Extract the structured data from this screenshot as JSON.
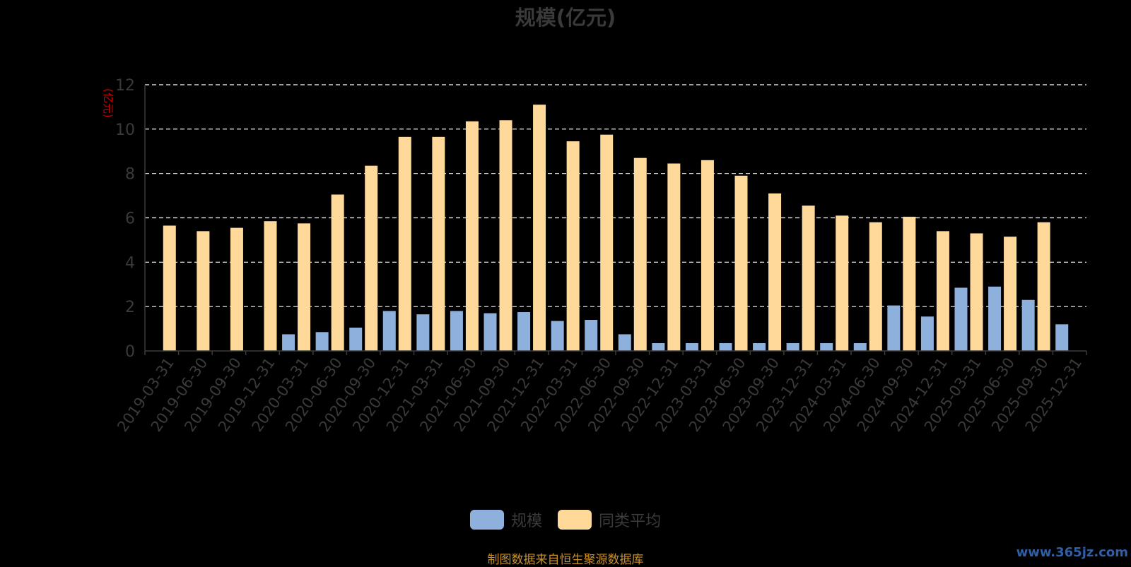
{
  "chart_data": {
    "type": "bar",
    "title": "规模(亿元)",
    "ylabel": "(亿元)",
    "xlabel": "",
    "ylim": [
      0,
      12
    ],
    "yticks": [
      0,
      2,
      4,
      6,
      8,
      10,
      12
    ],
    "grid": true,
    "legend_position": "bottom",
    "categories": [
      "2019-03-31",
      "2019-06-30",
      "2019-09-30",
      "2019-12-31",
      "2020-03-31",
      "2020-06-30",
      "2020-09-30",
      "2020-12-31",
      "2021-03-31",
      "2021-06-30",
      "2021-09-30",
      "2021-12-31",
      "2022-03-31",
      "2022-06-30",
      "2022-09-30",
      "2022-12-31",
      "2023-03-31",
      "2023-06-30",
      "2023-09-30",
      "2023-12-31",
      "2024-03-31",
      "2024-06-30",
      "2024-09-30",
      "2024-12-31",
      "2025-03-31",
      "2025-06-30",
      "2025-09-30",
      "2025-12-31"
    ],
    "series": [
      {
        "name": "规模",
        "color": "#8eb0dd",
        "values": [
          0,
          0,
          0,
          0,
          0.75,
          0.85,
          1.05,
          1.8,
          1.65,
          1.8,
          1.7,
          1.75,
          1.35,
          1.4,
          0.75,
          0.35,
          0.35,
          0.35,
          0.35,
          0.35,
          0.35,
          0.35,
          2.05,
          1.55,
          2.85,
          2.9,
          2.3,
          1.2
        ]
      },
      {
        "name": "同类平均",
        "color": "#ffd99a",
        "values": [
          5.65,
          5.4,
          5.55,
          5.85,
          5.75,
          7.05,
          8.35,
          9.65,
          9.65,
          10.35,
          10.4,
          11.1,
          9.45,
          9.75,
          8.7,
          8.45,
          8.6,
          7.9,
          7.1,
          6.55,
          6.1,
          5.8,
          6.05,
          5.4,
          5.3,
          5.15,
          5.8,
          null
        ]
      }
    ]
  },
  "footer": {
    "source_note": "制图数据来自恒生聚源数据库",
    "watermark": "www.365jz.com"
  },
  "colors": {
    "background": "#000000",
    "axis_text": "#3a3a3a",
    "ylabel": "#cc0000",
    "grid": "#ffffff"
  }
}
